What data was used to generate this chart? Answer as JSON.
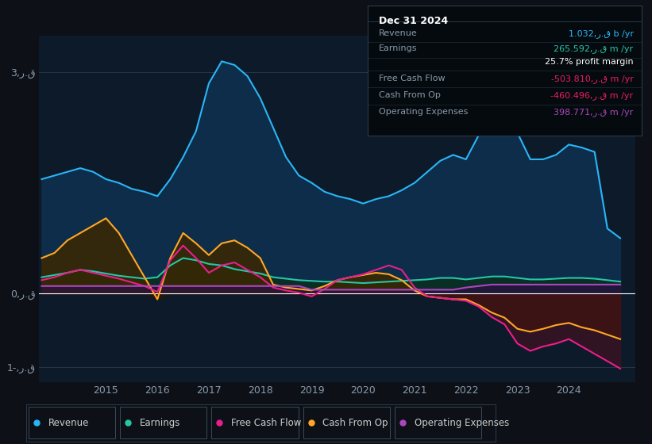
{
  "bg_color": "#0d1117",
  "plot_bg_color": "#0d1a2a",
  "ylim": [
    -1.2,
    3.5
  ],
  "xlim": [
    2013.7,
    2025.3
  ],
  "xticks": [
    2015,
    2016,
    2017,
    2018,
    2019,
    2020,
    2021,
    2022,
    2023,
    2024
  ],
  "yticks": [
    3.0,
    0.0,
    -1.0
  ],
  "ytick_labels": [
    "3,ر.ق",
    "0,ر.ق",
    "1-,ر.ق"
  ],
  "years": [
    2013.75,
    2014.0,
    2014.25,
    2014.5,
    2014.75,
    2015.0,
    2015.25,
    2015.5,
    2015.75,
    2016.0,
    2016.25,
    2016.5,
    2016.75,
    2017.0,
    2017.25,
    2017.5,
    2017.75,
    2018.0,
    2018.25,
    2018.5,
    2018.75,
    2019.0,
    2019.25,
    2019.5,
    2019.75,
    2020.0,
    2020.25,
    2020.5,
    2020.75,
    2021.0,
    2021.25,
    2021.5,
    2021.75,
    2022.0,
    2022.25,
    2022.5,
    2022.75,
    2023.0,
    2023.25,
    2023.5,
    2023.75,
    2024.0,
    2024.25,
    2024.5,
    2024.75,
    2025.0
  ],
  "revenue": [
    1.55,
    1.6,
    1.65,
    1.7,
    1.65,
    1.55,
    1.5,
    1.42,
    1.38,
    1.32,
    1.55,
    1.85,
    2.2,
    2.85,
    3.15,
    3.1,
    2.95,
    2.65,
    2.25,
    1.85,
    1.6,
    1.5,
    1.38,
    1.32,
    1.28,
    1.22,
    1.28,
    1.32,
    1.4,
    1.5,
    1.65,
    1.8,
    1.88,
    1.82,
    2.15,
    2.48,
    2.55,
    2.18,
    1.82,
    1.82,
    1.88,
    2.02,
    1.98,
    1.92,
    0.88,
    0.75
  ],
  "earnings": [
    0.22,
    0.25,
    0.28,
    0.32,
    0.3,
    0.27,
    0.24,
    0.22,
    0.2,
    0.22,
    0.38,
    0.48,
    0.45,
    0.4,
    0.38,
    0.33,
    0.3,
    0.27,
    0.22,
    0.2,
    0.18,
    0.17,
    0.16,
    0.16,
    0.15,
    0.14,
    0.15,
    0.16,
    0.17,
    0.18,
    0.19,
    0.21,
    0.21,
    0.19,
    0.21,
    0.23,
    0.23,
    0.21,
    0.19,
    0.19,
    0.2,
    0.21,
    0.21,
    0.2,
    0.18,
    0.16
  ],
  "free_cash_flow": [
    0.18,
    0.22,
    0.28,
    0.32,
    0.28,
    0.24,
    0.2,
    0.15,
    0.1,
    0.02,
    0.45,
    0.65,
    0.48,
    0.28,
    0.38,
    0.42,
    0.32,
    0.22,
    0.08,
    0.04,
    0.01,
    -0.04,
    0.06,
    0.18,
    0.22,
    0.26,
    0.32,
    0.38,
    0.32,
    0.08,
    -0.04,
    -0.06,
    -0.08,
    -0.1,
    -0.18,
    -0.32,
    -0.42,
    -0.68,
    -0.78,
    -0.72,
    -0.68,
    -0.62,
    -0.72,
    -0.82,
    -0.92,
    -1.02
  ],
  "cash_from_op": [
    0.48,
    0.55,
    0.72,
    0.82,
    0.92,
    1.02,
    0.82,
    0.52,
    0.22,
    -0.08,
    0.48,
    0.82,
    0.68,
    0.52,
    0.68,
    0.72,
    0.62,
    0.48,
    0.12,
    0.08,
    0.06,
    0.04,
    0.1,
    0.18,
    0.22,
    0.25,
    0.28,
    0.26,
    0.18,
    0.04,
    -0.04,
    -0.06,
    -0.08,
    -0.08,
    -0.16,
    -0.26,
    -0.33,
    -0.48,
    -0.52,
    -0.48,
    -0.43,
    -0.4,
    -0.46,
    -0.5,
    -0.56,
    -0.62
  ],
  "op_expenses": [
    0.1,
    0.1,
    0.1,
    0.1,
    0.1,
    0.1,
    0.1,
    0.1,
    0.1,
    0.1,
    0.1,
    0.1,
    0.1,
    0.1,
    0.1,
    0.1,
    0.1,
    0.1,
    0.1,
    0.1,
    0.1,
    0.05,
    0.05,
    0.05,
    0.05,
    0.05,
    0.05,
    0.05,
    0.05,
    0.05,
    0.05,
    0.05,
    0.05,
    0.08,
    0.1,
    0.12,
    0.12,
    0.12,
    0.12,
    0.12,
    0.12,
    0.12,
    0.12,
    0.12,
    0.12,
    0.12
  ],
  "revenue_line_color": "#29b6f6",
  "revenue_fill_color": "#0d2d4a",
  "earnings_line_color": "#26c6a6",
  "earnings_fill_color": "#0a2e22",
  "fcf_line_color": "#e91e8c",
  "fcf_fill_neg_color": "#4a1020",
  "cashop_line_color": "#ffa726",
  "cashop_fill_color": "#3a2800",
  "opex_line_color": "#ab47bc",
  "opex_fill_color": "#2a1040",
  "zero_line_color": "#ffffff",
  "grid_color": "#2a3a4a",
  "tick_color": "#8899aa",
  "legend_items": [
    {
      "label": "Revenue",
      "color": "#29b6f6"
    },
    {
      "label": "Earnings",
      "color": "#26c6a6"
    },
    {
      "label": "Free Cash Flow",
      "color": "#e91e8c"
    },
    {
      "label": "Cash From Op",
      "color": "#ffa726"
    },
    {
      "label": "Operating Expenses",
      "color": "#ab47bc"
    }
  ],
  "info_box": {
    "date": "Dec 31 2024",
    "rows": [
      {
        "label": "Revenue",
        "value": "1.032,ر.ق b /yr",
        "value_color": "#29b6f6"
      },
      {
        "label": "Earnings",
        "value": "265.592,ر.ق m /yr",
        "value_color": "#26c6a6"
      },
      {
        "label": "",
        "value": "25.7% profit margin",
        "value_color": "#ffffff"
      },
      {
        "label": "Free Cash Flow",
        "value": "-503.810,ر.ق m /yr",
        "value_color": "#e91e63"
      },
      {
        "label": "Cash From Op",
        "value": "-460.496,ر.ق m /yr",
        "value_color": "#e91e63"
      },
      {
        "label": "Operating Expenses",
        "value": "398.771,ر.ق m /yr",
        "value_color": "#ab47bc"
      }
    ]
  }
}
